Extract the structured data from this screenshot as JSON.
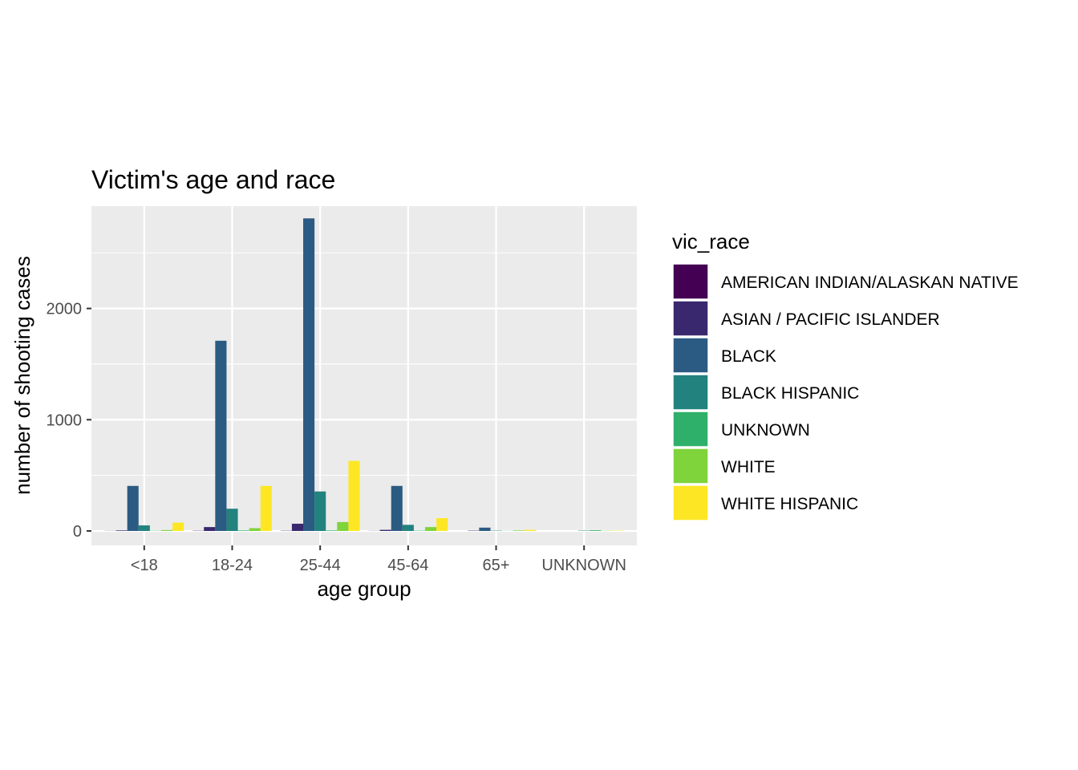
{
  "chart_data": {
    "type": "bar",
    "title": "Victim's age and race",
    "xlabel": "age group",
    "ylabel": "number of shooting cases",
    "categories": [
      "<18",
      "18-24",
      "25-44",
      "45-64",
      "65+",
      "UNKNOWN"
    ],
    "yticks": [
      0,
      1000,
      2000
    ],
    "ytick_labels": [
      "0",
      "1000",
      "2000"
    ],
    "ylim": [
      -130,
      2920
    ],
    "grid": true,
    "legend": {
      "title": "vic_race",
      "position": "right"
    },
    "series": [
      {
        "name": "AMERICAN INDIAN/ALASKAN NATIVE",
        "color": "#440154",
        "values": [
          1,
          2,
          2,
          1,
          0,
          0
        ]
      },
      {
        "name": "ASIAN / PACIFIC ISLANDER",
        "color": "#39286E",
        "values": [
          5,
          35,
          65,
          10,
          3,
          0
        ]
      },
      {
        "name": "BLACK",
        "color": "#2B5B83",
        "values": [
          405,
          1710,
          2810,
          405,
          30,
          0
        ]
      },
      {
        "name": "BLACK HISPANIC",
        "color": "#21827E",
        "values": [
          50,
          200,
          355,
          55,
          3,
          3
        ]
      },
      {
        "name": "UNKNOWN",
        "color": "#2EB06A",
        "values": [
          2,
          5,
          5,
          3,
          1,
          6
        ]
      },
      {
        "name": "WHITE",
        "color": "#7FD33B",
        "values": [
          8,
          25,
          80,
          35,
          5,
          2
        ]
      },
      {
        "name": "WHITE HISPANIC",
        "color": "#FDE725",
        "values": [
          75,
          405,
          630,
          115,
          10,
          3
        ]
      }
    ]
  }
}
